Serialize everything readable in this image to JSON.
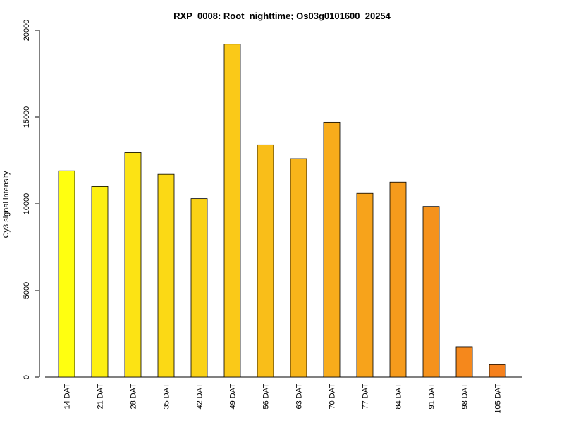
{
  "chart_data": {
    "type": "bar",
    "title": "RXP_0008: Root_nighttime; Os03g0101600_20254",
    "xlabel": "",
    "ylabel": "Cy3 signal intensity",
    "ylim": [
      0,
      20000
    ],
    "yticks": [
      0,
      5000,
      10000,
      15000,
      20000
    ],
    "categories": [
      "14 DAT",
      "21 DAT",
      "28 DAT",
      "35 DAT",
      "42 DAT",
      "49 DAT",
      "56 DAT",
      "63 DAT",
      "70 DAT",
      "77 DAT",
      "84 DAT",
      "91 DAT",
      "98 DAT",
      "105 DAT"
    ],
    "values": [
      11900,
      11000,
      12950,
      11700,
      10300,
      19200,
      13400,
      12600,
      14700,
      10600,
      11250,
      9850,
      1750,
      720
    ],
    "colors": [
      "#ffff10",
      "#fdef12",
      "#fce314",
      "#fbd915",
      "#fad216",
      "#fac918",
      "#f9be19",
      "#f8b51a",
      "#f8ac1b",
      "#f7a31b",
      "#f69b1c",
      "#f5921c",
      "#f5881c",
      "#f5801c"
    ],
    "grid": false,
    "legend": "none"
  }
}
